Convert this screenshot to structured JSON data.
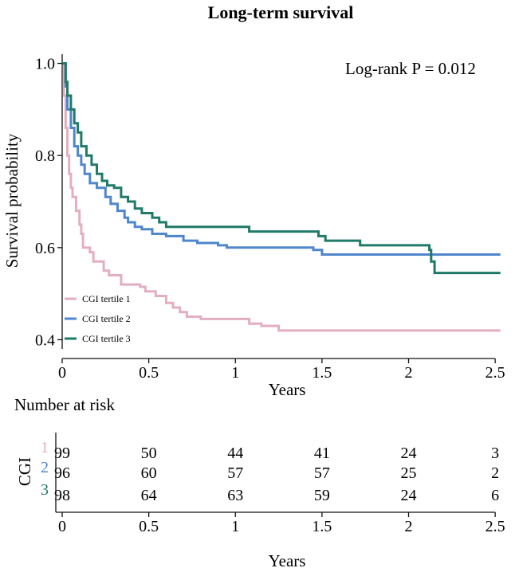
{
  "chart_data": {
    "type": "line",
    "subtype": "kaplan-meier",
    "title": "Long-term survival",
    "annotation": "Log-rank P = 0.012",
    "xlabel": "Years",
    "ylabel": "Survival probability",
    "xlim": [
      0,
      2.55
    ],
    "ylim": [
      0.38,
      1.02
    ],
    "xticks": [
      0,
      0.5,
      1,
      1.5,
      2,
      2.5
    ],
    "xtick_labels": [
      "0",
      "0.5",
      "1",
      "1.5",
      "2",
      "2.5"
    ],
    "yticks": [
      0.4,
      0.6,
      0.8,
      1.0
    ],
    "ytick_labels": [
      "0.4",
      "0.6",
      "0.8",
      "1.0"
    ],
    "legend_position": "bottom-left",
    "series": [
      {
        "name": "CGI tertile 1",
        "color": "#e3afbf",
        "points": [
          [
            0,
            1.0
          ],
          [
            0.01,
            0.93
          ],
          [
            0.02,
            0.86
          ],
          [
            0.03,
            0.8
          ],
          [
            0.04,
            0.76
          ],
          [
            0.05,
            0.73
          ],
          [
            0.06,
            0.71
          ],
          [
            0.08,
            0.68
          ],
          [
            0.1,
            0.65
          ],
          [
            0.11,
            0.63
          ],
          [
            0.12,
            0.6
          ],
          [
            0.16,
            0.59
          ],
          [
            0.18,
            0.57
          ],
          [
            0.24,
            0.55
          ],
          [
            0.27,
            0.54
          ],
          [
            0.34,
            0.52
          ],
          [
            0.45,
            0.515
          ],
          [
            0.48,
            0.505
          ],
          [
            0.54,
            0.495
          ],
          [
            0.6,
            0.48
          ],
          [
            0.64,
            0.47
          ],
          [
            0.68,
            0.46
          ],
          [
            0.72,
            0.45
          ],
          [
            0.8,
            0.445
          ],
          [
            1.08,
            0.435
          ],
          [
            1.15,
            0.43
          ],
          [
            1.25,
            0.42
          ],
          [
            2.53,
            0.42
          ]
        ]
      },
      {
        "name": "CGI tertile 2",
        "color": "#4f86cc",
        "points": [
          [
            0,
            1.0
          ],
          [
            0.02,
            0.95
          ],
          [
            0.03,
            0.9
          ],
          [
            0.05,
            0.86
          ],
          [
            0.07,
            0.82
          ],
          [
            0.09,
            0.8
          ],
          [
            0.11,
            0.78
          ],
          [
            0.13,
            0.76
          ],
          [
            0.16,
            0.74
          ],
          [
            0.2,
            0.73
          ],
          [
            0.25,
            0.71
          ],
          [
            0.28,
            0.695
          ],
          [
            0.32,
            0.68
          ],
          [
            0.36,
            0.665
          ],
          [
            0.38,
            0.655
          ],
          [
            0.42,
            0.645
          ],
          [
            0.46,
            0.64
          ],
          [
            0.52,
            0.63
          ],
          [
            0.6,
            0.625
          ],
          [
            0.7,
            0.615
          ],
          [
            0.78,
            0.61
          ],
          [
            0.9,
            0.605
          ],
          [
            0.95,
            0.6
          ],
          [
            1.45,
            0.595
          ],
          [
            1.5,
            0.585
          ],
          [
            2.53,
            0.585
          ]
        ]
      },
      {
        "name": "CGI tertile 3",
        "color": "#1f7a68",
        "points": [
          [
            0,
            1.0
          ],
          [
            0.02,
            0.96
          ],
          [
            0.03,
            0.93
          ],
          [
            0.05,
            0.9
          ],
          [
            0.07,
            0.87
          ],
          [
            0.09,
            0.85
          ],
          [
            0.11,
            0.82
          ],
          [
            0.14,
            0.8
          ],
          [
            0.17,
            0.78
          ],
          [
            0.2,
            0.76
          ],
          [
            0.23,
            0.745
          ],
          [
            0.26,
            0.735
          ],
          [
            0.3,
            0.73
          ],
          [
            0.34,
            0.71
          ],
          [
            0.38,
            0.7
          ],
          [
            0.42,
            0.685
          ],
          [
            0.46,
            0.675
          ],
          [
            0.52,
            0.665
          ],
          [
            0.56,
            0.655
          ],
          [
            0.6,
            0.645
          ],
          [
            1.08,
            0.635
          ],
          [
            1.48,
            0.625
          ],
          [
            1.52,
            0.615
          ],
          [
            1.72,
            0.605
          ],
          [
            2.12,
            0.595
          ],
          [
            2.13,
            0.57
          ],
          [
            2.15,
            0.545
          ],
          [
            2.53,
            0.545
          ]
        ]
      }
    ],
    "risk_table": {
      "title": "Number at risk",
      "group_label": "CGI",
      "xlabel": "Years",
      "times": [
        0,
        0.5,
        1,
        1.5,
        2,
        2.5
      ],
      "time_labels": [
        "0",
        "0.5",
        "1",
        "1.5",
        "2",
        "2.5"
      ],
      "rows": [
        {
          "strata": "1",
          "color": "#e3afbf",
          "values": [
            "99",
            "50",
            "44",
            "41",
            "24",
            "3"
          ]
        },
        {
          "strata": "2",
          "color": "#4f86cc",
          "values": [
            "96",
            "60",
            "57",
            "57",
            "25",
            "2"
          ]
        },
        {
          "strata": "3",
          "color": "#1f7a68",
          "values": [
            "98",
            "64",
            "63",
            "59",
            "24",
            "6"
          ]
        }
      ]
    }
  }
}
